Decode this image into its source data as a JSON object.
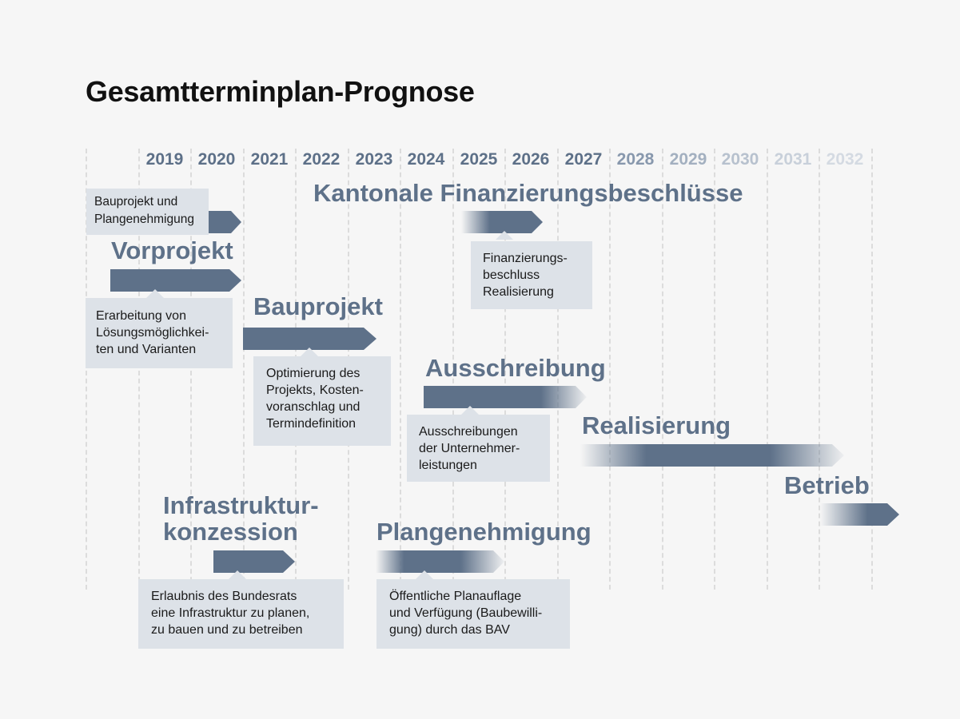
{
  "title": "Gesamtterminplan-Prognose",
  "colors": {
    "background": "#f6f6f6",
    "bar": "#5e7189",
    "box": "#dde2e8",
    "heading": "#5e7189",
    "grid": "#dcdcdc"
  },
  "years": [
    {
      "label": "2019",
      "color": "#5d7088"
    },
    {
      "label": "2020",
      "color": "#5d7088"
    },
    {
      "label": "2021",
      "color": "#5d7088"
    },
    {
      "label": "2022",
      "color": "#5d7088"
    },
    {
      "label": "2023",
      "color": "#5d7088"
    },
    {
      "label": "2024",
      "color": "#5d7088"
    },
    {
      "label": "2025",
      "color": "#5d7088"
    },
    {
      "label": "2026",
      "color": "#5d7088"
    },
    {
      "label": "2027",
      "color": "#5d7088"
    },
    {
      "label": "2028",
      "color": "#8898ad"
    },
    {
      "label": "2029",
      "color": "#a3b0c0"
    },
    {
      "label": "2030",
      "color": "#b7c1ce"
    },
    {
      "label": "2031",
      "color": "#c8d0da"
    },
    {
      "label": "2032",
      "color": "#d4dae2"
    }
  ],
  "phases": {
    "vorprojekt": {
      "title": "Vorprojekt"
    },
    "bauprojekt": {
      "title": "Bauprojekt"
    },
    "kantonale": {
      "title": "Kantonale Finanzierungsbeschlüsse"
    },
    "ausschreibung": {
      "title": "Ausschreibung"
    },
    "realisierung": {
      "title": "Realisierung"
    },
    "betrieb": {
      "title": "Betrieb"
    },
    "infrastruktur": {
      "title": "Infrastruktur-\nkonzession"
    },
    "plangenehmigung": {
      "title": "Plangenehmigung"
    }
  },
  "boxes": {
    "bauprojekt_plangenehmigung": "Bauprojekt und\nPlangenehmigung",
    "vorprojekt": "Erarbeitung von\nLösungsmöglichkei-\nten und Varianten",
    "bauprojekt": "Optimierung des\nProjekts, Kosten-\nvoranschlag und\nTermindefinition",
    "finanzierung": "Finanzierungs-\nbeschluss\nRealisierung",
    "ausschreibung": "Ausschreibungen\nder Unternehmer-\nleistungen",
    "infrastruktur": "Erlaubnis des Bundesrats\neine Infrastruktur zu planen,\nzu bauen und zu betreiben",
    "plangenehmigung": "Öffentliche Planauflage\nund Verfügung (Baubewilli-\ngung) durch das BAV"
  }
}
